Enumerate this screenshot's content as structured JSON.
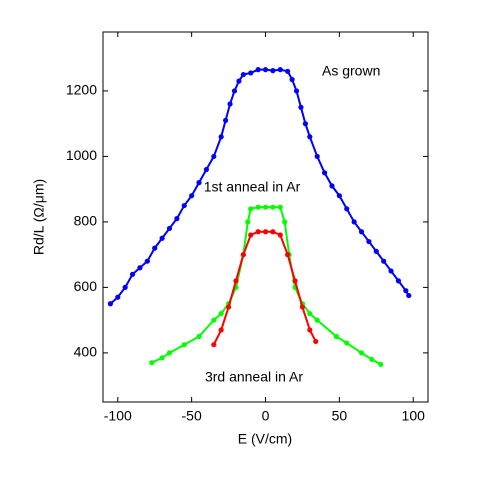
{
  "chart_data": {
    "type": "scatter-line",
    "xlabel": "E (V/cm)",
    "ylabel": "Rd/L (Ω/μm)",
    "xlim": [
      -110,
      110
    ],
    "ylim": [
      250,
      1380
    ],
    "xticks": [
      -100,
      -50,
      0,
      50,
      100
    ],
    "yticks": [
      400,
      600,
      800,
      1000,
      1200
    ],
    "series": [
      {
        "name": "As grown",
        "color": "#0000ff",
        "x": [
          -105,
          -100,
          -95,
          -90,
          -85,
          -80,
          -75,
          -70,
          -65,
          -60,
          -55,
          -50,
          -45,
          -40,
          -35,
          -30,
          -27,
          -24,
          -21,
          -18,
          -15,
          -10,
          -5,
          0,
          5,
          10,
          15,
          18,
          21,
          24,
          27,
          30,
          35,
          40,
          45,
          50,
          55,
          60,
          65,
          70,
          75,
          80,
          85,
          90,
          95,
          97
        ],
        "values": [
          550,
          570,
          600,
          640,
          660,
          680,
          720,
          750,
          780,
          810,
          850,
          880,
          920,
          960,
          1000,
          1060,
          1110,
          1160,
          1200,
          1230,
          1250,
          1255,
          1265,
          1265,
          1262,
          1265,
          1260,
          1235,
          1200,
          1150,
          1100,
          1060,
          1000,
          950,
          910,
          880,
          840,
          800,
          770,
          740,
          710,
          680,
          650,
          620,
          590,
          575
        ]
      },
      {
        "name": "1st anneal in Ar",
        "color": "#00ff00",
        "x": [
          -77,
          -70,
          -65,
          -55,
          -45,
          -35,
          -30,
          -25,
          -20,
          -15,
          -12,
          -10,
          -5,
          0,
          5,
          10,
          13,
          16,
          20,
          25,
          30,
          35,
          48,
          55,
          65,
          72,
          78
        ],
        "values": [
          370,
          385,
          400,
          425,
          450,
          500,
          520,
          550,
          600,
          700,
          800,
          840,
          845,
          845,
          845,
          845,
          800,
          700,
          600,
          550,
          520,
          500,
          450,
          430,
          400,
          380,
          365
        ]
      },
      {
        "name": "3rd anneal in Ar",
        "color": "#ff0000",
        "x": [
          -35,
          -30,
          -25,
          -20,
          -15,
          -10,
          -5,
          0,
          5,
          10,
          15,
          20,
          25,
          30,
          34
        ],
        "values": [
          425,
          470,
          540,
          620,
          700,
          760,
          770,
          770,
          770,
          760,
          700,
          620,
          540,
          470,
          435
        ]
      }
    ]
  }
}
